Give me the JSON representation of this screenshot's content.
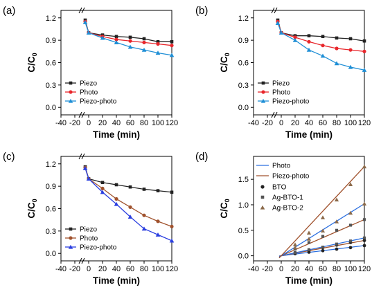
{
  "panels": [
    "(a)",
    "(b)",
    "(c)",
    "(d)"
  ],
  "chart_data": [
    {
      "panel": "(a)",
      "type": "line",
      "xlabel": "Time (min)",
      "ylabel": "C/C0",
      "xlim": [
        -40,
        120
      ],
      "ylim": [
        -0.1,
        1.3
      ],
      "xticks": [
        -40,
        -20,
        0,
        20,
        40,
        60,
        80,
        100,
        120
      ],
      "yticks": [
        0.0,
        0.3,
        0.6,
        0.9,
        1.2
      ],
      "ytick_labels": [
        "0.0",
        "0.3",
        "0.6",
        "0.9",
        "1.2"
      ],
      "axis_break": true,
      "legend_position": "bottom-left",
      "series": [
        {
          "name": "Piezo",
          "color": "#222222",
          "marker": "square",
          "x": [
            -5,
            0,
            20,
            40,
            60,
            80,
            100,
            120
          ],
          "y": [
            1.17,
            1.0,
            0.97,
            0.95,
            0.94,
            0.92,
            0.88,
            0.88
          ]
        },
        {
          "name": "Photo",
          "color": "#e8262b",
          "marker": "circle",
          "x": [
            -5,
            0,
            20,
            40,
            60,
            80,
            100,
            120
          ],
          "y": [
            1.15,
            1.0,
            0.95,
            0.91,
            0.89,
            0.87,
            0.85,
            0.83
          ]
        },
        {
          "name": "Piezo-photo",
          "color": "#1f8fd6",
          "marker": "triangle",
          "x": [
            -5,
            0,
            20,
            40,
            60,
            80,
            100,
            120
          ],
          "y": [
            1.14,
            1.0,
            0.93,
            0.87,
            0.81,
            0.77,
            0.73,
            0.7
          ]
        }
      ]
    },
    {
      "panel": "(b)",
      "type": "line",
      "xlabel": "Time (min)",
      "ylabel": "C/C0",
      "xlim": [
        -40,
        120
      ],
      "ylim": [
        -0.1,
        1.3
      ],
      "xticks": [
        -40,
        -20,
        0,
        20,
        40,
        60,
        80,
        100,
        120
      ],
      "yticks": [
        0.0,
        0.3,
        0.6,
        0.9,
        1.2
      ],
      "ytick_labels": [
        "0.0",
        "0.3",
        "0.6",
        "0.9",
        "1.2"
      ],
      "axis_break": true,
      "legend_position": "bottom-left",
      "series": [
        {
          "name": "Piezo",
          "color": "#222222",
          "marker": "square",
          "x": [
            -5,
            0,
            20,
            40,
            60,
            80,
            100,
            120
          ],
          "y": [
            1.17,
            1.0,
            0.96,
            0.96,
            0.95,
            0.93,
            0.92,
            0.89
          ]
        },
        {
          "name": "Photo",
          "color": "#e8262b",
          "marker": "circle",
          "x": [
            -5,
            0,
            20,
            40,
            60,
            80,
            100,
            120
          ],
          "y": [
            1.15,
            1.0,
            0.94,
            0.88,
            0.83,
            0.79,
            0.77,
            0.75
          ]
        },
        {
          "name": "Piezo-photo",
          "color": "#1f8fd6",
          "marker": "triangle",
          "x": [
            -5,
            0,
            20,
            40,
            60,
            80,
            100,
            120
          ],
          "y": [
            1.13,
            1.0,
            0.9,
            0.77,
            0.69,
            0.59,
            0.54,
            0.5
          ]
        }
      ]
    },
    {
      "panel": "(c)",
      "type": "line",
      "xlabel": "Time (min)",
      "ylabel": "C/C0",
      "xlim": [
        -40,
        120
      ],
      "ylim": [
        -0.1,
        1.3
      ],
      "xticks": [
        -40,
        -20,
        0,
        20,
        40,
        60,
        80,
        100,
        120
      ],
      "yticks": [
        0.0,
        0.3,
        0.6,
        0.9,
        1.2
      ],
      "ytick_labels": [
        "0.0",
        "0.3",
        "0.6",
        "0.9",
        "1.2"
      ],
      "axis_break": true,
      "legend_position": "bottom-left",
      "series": [
        {
          "name": "Piezo",
          "color": "#222222",
          "marker": "square",
          "x": [
            -5,
            0,
            20,
            40,
            60,
            80,
            100,
            120
          ],
          "y": [
            1.16,
            1.0,
            0.95,
            0.92,
            0.89,
            0.86,
            0.84,
            0.82
          ]
        },
        {
          "name": "Photo",
          "color": "#a0522d",
          "marker": "circle",
          "x": [
            -5,
            0,
            20,
            40,
            60,
            80,
            100,
            120
          ],
          "y": [
            1.15,
            1.0,
            0.87,
            0.73,
            0.62,
            0.51,
            0.43,
            0.36
          ]
        },
        {
          "name": "Piezo-photo",
          "color": "#2b3fe0",
          "marker": "triangle",
          "x": [
            -5,
            0,
            20,
            40,
            60,
            80,
            100,
            120
          ],
          "y": [
            1.14,
            1.0,
            0.82,
            0.66,
            0.49,
            0.33,
            0.25,
            0.17
          ]
        }
      ]
    },
    {
      "panel": "(d)",
      "type": "scatter",
      "xlabel": "Time (min)",
      "ylabel": "C/C0",
      "xlim": [
        -40,
        120
      ],
      "ylim": [
        -0.1,
        1.95
      ],
      "xticks": [
        -40,
        -20,
        0,
        20,
        40,
        60,
        80,
        100,
        120
      ],
      "yticks": [
        0.0,
        0.5,
        1.0,
        1.5
      ],
      "ytick_labels": [
        "0.0",
        "0.5",
        "1.0",
        "1.5"
      ],
      "legend_position": "top-left",
      "legend": [
        {
          "label": "Photo",
          "kind": "line",
          "color": "#2b6fe0"
        },
        {
          "label": "Piezo-photo",
          "kind": "line",
          "color": "#a0522d"
        },
        {
          "label": "BTO",
          "kind": "marker",
          "marker": "circle",
          "color": "#222222"
        },
        {
          "label": "Ag-BTO-1",
          "kind": "marker",
          "marker": "square",
          "color": "#555555"
        },
        {
          "label": "Ag-BTO-2",
          "kind": "marker",
          "marker": "triangle",
          "color": "#8b6a4a"
        }
      ],
      "series": [
        {
          "name": "BTO",
          "fit": "Photo",
          "color": "#2b6fe0",
          "marker": "circle",
          "marker_color": "#222222",
          "x": [
            0,
            20,
            40,
            60,
            80,
            100,
            120
          ],
          "y": [
            0,
            0.04,
            0.07,
            0.1,
            0.13,
            0.16,
            0.2
          ]
        },
        {
          "name": "BTO",
          "fit": "Piezo-photo",
          "color": "#a0522d",
          "marker": "circle",
          "marker_color": "#222222",
          "x": [
            0,
            20,
            40,
            60,
            80,
            100,
            120
          ],
          "y": [
            0,
            0.06,
            0.1,
            0.16,
            0.21,
            0.26,
            0.3
          ]
        },
        {
          "name": "Ag-BTO-1",
          "fit": "Photo",
          "color": "#2b6fe0",
          "marker": "square",
          "marker_color": "#555555",
          "x": [
            0,
            20,
            40,
            60,
            80,
            100,
            120
          ],
          "y": [
            0,
            0.06,
            0.12,
            0.17,
            0.23,
            0.29,
            0.35
          ]
        },
        {
          "name": "Ag-BTO-1",
          "fit": "Piezo-photo",
          "color": "#a0522d",
          "marker": "square",
          "marker_color": "#555555",
          "x": [
            0,
            20,
            40,
            60,
            80,
            100,
            120
          ],
          "y": [
            0,
            0.13,
            0.26,
            0.38,
            0.5,
            0.6,
            0.71
          ]
        },
        {
          "name": "Ag-BTO-2",
          "fit": "Photo",
          "color": "#2b6fe0",
          "marker": "triangle",
          "marker_color": "#8b6a4a",
          "x": [
            0,
            20,
            40,
            60,
            80,
            100,
            120
          ],
          "y": [
            0,
            0.16,
            0.33,
            0.49,
            0.67,
            0.84,
            1.02
          ]
        },
        {
          "name": "Ag-BTO-2",
          "fit": "Piezo-photo",
          "color": "#a0522d",
          "marker": "triangle",
          "marker_color": "#8b6a4a",
          "x": [
            0,
            20,
            40,
            60,
            80,
            100,
            120
          ],
          "y": [
            0,
            0.22,
            0.45,
            0.75,
            1.1,
            1.4,
            1.75
          ]
        }
      ]
    }
  ]
}
